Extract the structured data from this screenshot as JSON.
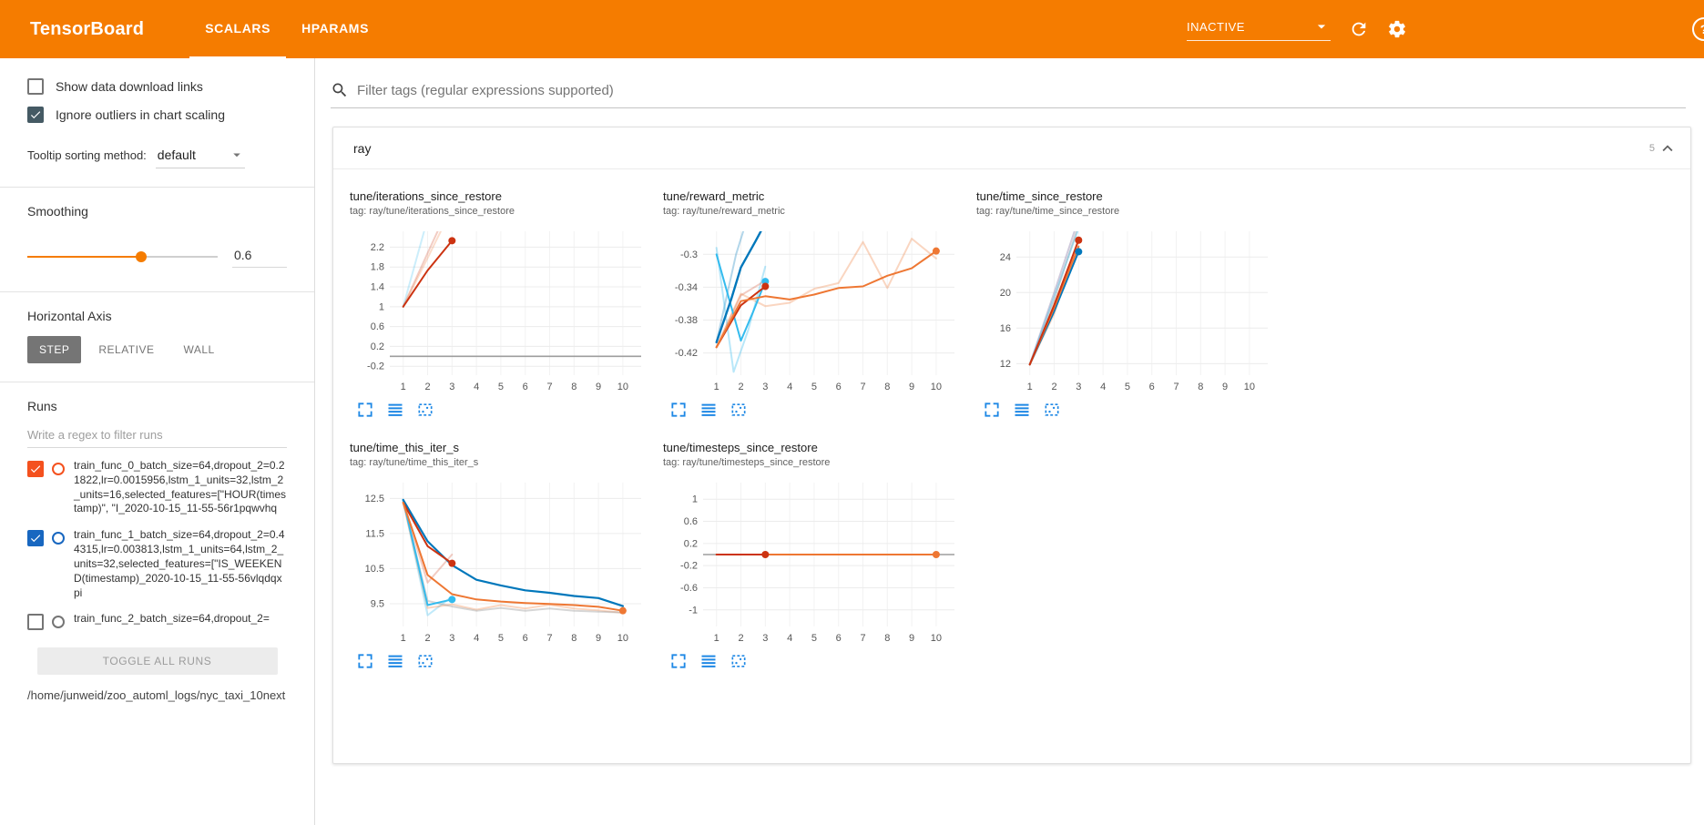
{
  "colors": {
    "header_bg": "#f57c00",
    "accent": "#f57c00",
    "chart_action_blue": "#1e88e5",
    "run_palette": [
      "#ee7733",
      "#0077bb",
      "#cc3311",
      "#33bbee"
    ]
  },
  "icons": [
    "search-icon",
    "reload-icon",
    "settings-icon",
    "help-icon",
    "chevron-down-icon",
    "collapse-section-icon",
    "expand-chart-icon",
    "toggle-yaxis-icon",
    "fit-domain-icon"
  ],
  "header": {
    "title": "TensorBoard",
    "tabs": [
      {
        "label": "SCALARS",
        "active": true
      },
      {
        "label": "HPARAMS",
        "active": false
      }
    ],
    "run_selector": {
      "value": "INACTIVE"
    }
  },
  "sidebar": {
    "toggles": [
      {
        "label": "Show data download links",
        "checked": false,
        "color": "#455a64"
      },
      {
        "label": "Ignore outliers in chart scaling",
        "checked": true,
        "color": "#455a64"
      }
    ],
    "tooltip_sort": {
      "label": "Tooltip sorting method:",
      "value": "default"
    },
    "smoothing": {
      "label": "Smoothing",
      "value": "0.6",
      "percent": 60
    },
    "haxis": {
      "label": "Horizontal Axis",
      "buttons": [
        {
          "label": "STEP",
          "active": true
        },
        {
          "label": "RELATIVE",
          "active": false
        },
        {
          "label": "WALL",
          "active": false
        }
      ]
    },
    "runs": {
      "title": "Runs",
      "filter_placeholder": "Write a regex to filter runs",
      "items": [
        {
          "text": "train_func_0_batch_size=64,dropout_2=0.21822,lr=0.0015956,lstm_1_units=32,lstm_2_units=16,selected_features=[\"HOUR(timestamp)\", \"I_2020-10-15_11-55-56r1pqwvhq",
          "checked": true,
          "color": "#f4511e"
        },
        {
          "text": "train_func_1_batch_size=64,dropout_2=0.44315,lr=0.003813,lstm_1_units=64,lstm_2_units=32,selected_features=[\"IS_WEEKEND(timestamp)_2020-10-15_11-55-56vlqdqxpi",
          "checked": true,
          "color": "#1867c0"
        },
        {
          "text": "train_func_2_batch_size=64,dropout_2=",
          "checked": false,
          "color": "#757575"
        }
      ],
      "toggle_all_label": "TOGGLE ALL RUNS"
    },
    "logdir": "/home/junweid/zoo_automl_logs/nyc_taxi_10next"
  },
  "main": {
    "tag_filter_placeholder": "Filter tags (regular expressions supported)",
    "group": {
      "title": "ray",
      "count": "5"
    }
  },
  "chart_data": [
    {
      "type": "line",
      "title": "tune/iterations_since_restore",
      "subtitle": "tag: ray/tune/iterations_since_restore",
      "xlim": [
        0.45,
        10.75
      ],
      "xticks": [
        1,
        2,
        3,
        4,
        5,
        6,
        7,
        8,
        9,
        10
      ],
      "ylim": [
        -0.38,
        2.52
      ],
      "yticks": [
        -0.2,
        0.2,
        0.6,
        1,
        1.4,
        1.8,
        2.2
      ],
      "zeroline": true,
      "series": [
        {
          "name": "run2-raw",
          "color": "#cc3311",
          "opacity": 0.25,
          "points": [
            [
              1,
              1
            ],
            [
              2,
              2.08
            ],
            [
              3,
              3.15
            ]
          ]
        },
        {
          "name": "run0-raw",
          "color": "#ee7733",
          "opacity": 0.25,
          "points": [
            [
              1,
              1
            ],
            [
              2,
              1.98
            ],
            [
              3,
              2.98
            ]
          ]
        },
        {
          "name": "run3-raw",
          "color": "#33bbee",
          "opacity": 0.25,
          "points": [
            [
              1,
              1
            ],
            [
              1.9,
              2.6
            ],
            [
              2.4,
              3.5
            ]
          ]
        },
        {
          "name": "run2-smoothed",
          "color": "#cc3311",
          "points": [
            [
              1,
              1
            ],
            [
              2,
              1.73
            ],
            [
              3,
              2.33
            ]
          ]
        }
      ],
      "dots": [
        {
          "x": 3,
          "y": 2.33,
          "color": "#cc3311"
        }
      ]
    },
    {
      "type": "line",
      "title": "tune/reward_metric",
      "subtitle": "tag: ray/tune/reward_metric",
      "xlim": [
        0.45,
        10.75
      ],
      "xticks": [
        1,
        2,
        3,
        4,
        5,
        6,
        7,
        8,
        9,
        10
      ],
      "ylim": [
        -0.447,
        -0.272
      ],
      "yticks": [
        -0.42,
        -0.38,
        -0.34,
        -0.3
      ],
      "zeroline": false,
      "series": [
        {
          "name": "run1-raw",
          "color": "#0077bb",
          "opacity": 0.3,
          "points": [
            [
              1,
              -0.407
            ],
            [
              1.8,
              -0.3
            ],
            [
              2.2,
              -0.262
            ]
          ]
        },
        {
          "name": "run3-raw",
          "color": "#33bbee",
          "opacity": 0.35,
          "points": [
            [
              1,
              -0.292
            ],
            [
              1.7,
              -0.443
            ],
            [
              2.3,
              -0.392
            ],
            [
              3,
              -0.315
            ]
          ]
        },
        {
          "name": "run2-raw",
          "color": "#cc3311",
          "opacity": 0.25,
          "points": [
            [
              1,
              -0.413
            ],
            [
              2,
              -0.35
            ],
            [
              3,
              -0.332
            ]
          ]
        },
        {
          "name": "run0-raw",
          "color": "#ee7733",
          "opacity": 0.3,
          "points": [
            [
              1,
              -0.413
            ],
            [
              2,
              -0.348
            ],
            [
              3,
              -0.363
            ],
            [
              4,
              -0.359
            ],
            [
              5,
              -0.342
            ],
            [
              6,
              -0.335
            ],
            [
              7,
              -0.285
            ],
            [
              8,
              -0.341
            ],
            [
              9,
              -0.281
            ],
            [
              10,
              -0.305
            ]
          ]
        },
        {
          "name": "run3-smoothed",
          "color": "#33bbee",
          "points": [
            [
              1,
              -0.3
            ],
            [
              2,
              -0.405
            ],
            [
              2.5,
              -0.37
            ],
            [
              3,
              -0.333
            ]
          ]
        },
        {
          "name": "run1-smoothed",
          "color": "#0077bb",
          "width": 2.4,
          "points": [
            [
              1,
              -0.407
            ],
            [
              1.6,
              -0.355
            ],
            [
              2,
              -0.316
            ],
            [
              2.6,
              -0.284
            ],
            [
              3,
              -0.262
            ]
          ]
        },
        {
          "name": "run2-smoothed",
          "color": "#cc3311",
          "points": [
            [
              1,
              -0.413
            ],
            [
              2,
              -0.362
            ],
            [
              3,
              -0.339
            ]
          ]
        },
        {
          "name": "run0-smoothed",
          "color": "#ee7733",
          "points": [
            [
              1,
              -0.413
            ],
            [
              2,
              -0.357
            ],
            [
              3,
              -0.351
            ],
            [
              4,
              -0.355
            ],
            [
              5,
              -0.349
            ],
            [
              6,
              -0.341
            ],
            [
              7,
              -0.339
            ],
            [
              8,
              -0.326
            ],
            [
              9,
              -0.317
            ],
            [
              10,
              -0.296
            ]
          ]
        }
      ],
      "dots": [
        {
          "x": 3,
          "y": -0.333,
          "color": "#33bbee"
        },
        {
          "x": 3,
          "y": -0.339,
          "color": "#cc3311"
        },
        {
          "x": 10,
          "y": -0.296,
          "color": "#ee7733"
        }
      ]
    },
    {
      "type": "line",
      "title": "tune/time_since_restore",
      "subtitle": "tag: ray/tune/time_since_restore",
      "xlim": [
        0.45,
        10.75
      ],
      "xticks": [
        1,
        2,
        3,
        4,
        5,
        6,
        7,
        8,
        9,
        10
      ],
      "ylim": [
        10.7,
        26.9
      ],
      "yticks": [
        12,
        16,
        20,
        24
      ],
      "zeroline": false,
      "series": [
        {
          "name": "raw-a",
          "color": "#aaaaaa",
          "opacity": 0.5,
          "points": [
            [
              1,
              11.9
            ],
            [
              2,
              19.2
            ],
            [
              3,
              27.6
            ]
          ]
        },
        {
          "name": "raw-b",
          "color": "#b0a7c4",
          "opacity": 0.6,
          "points": [
            [
              1,
              11.9
            ],
            [
              2,
              20
            ],
            [
              3,
              28.3
            ]
          ]
        },
        {
          "name": "run0-raw",
          "color": "#ee7733",
          "opacity": 0.3,
          "points": [
            [
              1,
              11.9
            ],
            [
              2,
              17.6
            ],
            [
              3,
              26.2
            ]
          ]
        },
        {
          "name": "run3-raw",
          "color": "#33bbee",
          "opacity": 0.35,
          "points": [
            [
              1,
              11.9
            ],
            [
              2,
              19.6
            ],
            [
              3,
              27.2
            ]
          ]
        },
        {
          "name": "run1-smoothed",
          "color": "#0077bb",
          "points": [
            [
              1,
              11.9
            ],
            [
              2,
              17.9
            ],
            [
              3,
              24.6
            ]
          ]
        },
        {
          "name": "run0-smoothed",
          "color": "#ee7733",
          "points": [
            [
              1,
              11.9
            ],
            [
              2,
              18.3
            ],
            [
              3,
              25.2
            ]
          ]
        },
        {
          "name": "run2-smoothed",
          "color": "#cc3311",
          "points": [
            [
              1,
              11.9
            ],
            [
              2,
              18.6
            ],
            [
              3,
              25.9
            ]
          ]
        }
      ],
      "dots": [
        {
          "x": 3,
          "y": 24.6,
          "color": "#0077bb"
        },
        {
          "x": 3,
          "y": 25.9,
          "color": "#cc3311"
        }
      ]
    },
    {
      "type": "line",
      "title": "tune/time_this_iter_s",
      "subtitle": "tag: ray/tune/time_this_iter_s",
      "xlim": [
        0.45,
        10.75
      ],
      "xticks": [
        1,
        2,
        3,
        4,
        5,
        6,
        7,
        8,
        9,
        10
      ],
      "ylim": [
        8.85,
        12.95
      ],
      "yticks": [
        9.5,
        10.5,
        11.5,
        12.5
      ],
      "zeroline": false,
      "series": [
        {
          "name": "run3-raw",
          "color": "#33bbee",
          "opacity": 0.3,
          "points": [
            [
              1,
              12.46
            ],
            [
              2,
              9.17
            ],
            [
              3,
              9.7
            ]
          ]
        },
        {
          "name": "run0-raw",
          "color": "#ee7733",
          "opacity": 0.3,
          "points": [
            [
              1,
              12.38
            ],
            [
              2,
              9.38
            ],
            [
              3,
              9.48
            ],
            [
              4,
              9.33
            ],
            [
              5,
              9.46
            ],
            [
              6,
              9.36
            ],
            [
              7,
              9.47
            ],
            [
              8,
              9.36
            ],
            [
              9,
              9.31
            ],
            [
              10,
              9.24
            ]
          ]
        },
        {
          "name": "raw-gray",
          "color": "#999999",
          "opacity": 0.4,
          "points": [
            [
              1,
              12.43
            ],
            [
              2,
              9.58
            ],
            [
              3,
              9.42
            ],
            [
              4,
              9.3
            ],
            [
              5,
              9.38
            ],
            [
              6,
              9.3
            ],
            [
              7,
              9.36
            ],
            [
              8,
              9.3
            ],
            [
              9,
              9.27
            ],
            [
              10,
              9.25
            ]
          ]
        },
        {
          "name": "run2-raw",
          "color": "#cc3311",
          "opacity": 0.25,
          "points": [
            [
              1,
              12.38
            ],
            [
              2,
              10.1
            ],
            [
              3,
              10.9
            ]
          ]
        },
        {
          "name": "run3-smoothed",
          "color": "#33bbee",
          "points": [
            [
              1,
              12.46
            ],
            [
              2,
              9.46
            ],
            [
              3,
              9.62
            ]
          ]
        },
        {
          "name": "run1-smoothed",
          "color": "#0077bb",
          "width": 2.2,
          "points": [
            [
              1,
              12.46
            ],
            [
              2,
              11.28
            ],
            [
              3,
              10.6
            ],
            [
              4,
              10.18
            ],
            [
              5,
              10.02
            ],
            [
              6,
              9.88
            ],
            [
              7,
              9.81
            ],
            [
              8,
              9.72
            ],
            [
              9,
              9.66
            ],
            [
              10,
              9.43
            ]
          ]
        },
        {
          "name": "run2-smoothed",
          "color": "#cc3311",
          "points": [
            [
              1,
              12.38
            ],
            [
              2,
              11.14
            ],
            [
              3,
              10.65
            ]
          ]
        },
        {
          "name": "run0-smoothed",
          "color": "#ee7733",
          "points": [
            [
              1,
              12.38
            ],
            [
              2,
              10.32
            ],
            [
              3,
              9.77
            ],
            [
              4,
              9.62
            ],
            [
              5,
              9.56
            ],
            [
              6,
              9.52
            ],
            [
              7,
              9.49
            ],
            [
              8,
              9.46
            ],
            [
              9,
              9.41
            ],
            [
              10,
              9.3
            ]
          ]
        }
      ],
      "dots": [
        {
          "x": 3,
          "y": 9.62,
          "color": "#33bbee"
        },
        {
          "x": 3,
          "y": 10.65,
          "color": "#cc3311"
        },
        {
          "x": 10,
          "y": 9.3,
          "color": "#ee7733"
        }
      ]
    },
    {
      "type": "line",
      "title": "tune/timesteps_since_restore",
      "subtitle": "tag: ray/tune/timesteps_since_restore",
      "xlim": [
        0.45,
        10.75
      ],
      "xticks": [
        1,
        2,
        3,
        4,
        5,
        6,
        7,
        8,
        9,
        10
      ],
      "ylim": [
        -1.3,
        1.3
      ],
      "yticks": [
        -1,
        -0.6,
        -0.2,
        0.2,
        0.6,
        1
      ],
      "zeroline": true,
      "series": [
        {
          "name": "run0-smoothed",
          "color": "#ee7733",
          "points": [
            [
              1,
              0
            ],
            [
              10,
              0
            ]
          ]
        },
        {
          "name": "run2-smoothed",
          "color": "#cc3311",
          "points": [
            [
              1,
              0
            ],
            [
              3,
              0
            ]
          ]
        }
      ],
      "dots": [
        {
          "x": 3,
          "y": 0,
          "color": "#cc3311"
        },
        {
          "x": 10,
          "y": 0,
          "color": "#ee7733"
        }
      ]
    }
  ]
}
